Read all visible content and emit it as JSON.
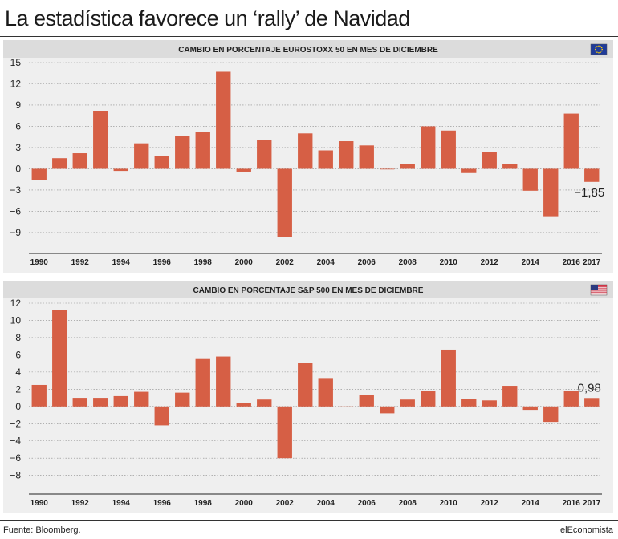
{
  "title": "La estadística favorece un ‘rally’ de Navidad",
  "source": "Fuente: Bloomberg.",
  "brand": "elEconomista",
  "colors": {
    "bar": "#d65f45",
    "panel": "#efefef",
    "header": "#dcdcdc",
    "grid": "#8a8a8a"
  },
  "chart_data": [
    {
      "type": "bar",
      "title": "CAMBIO EN PORCENTAJE EUROSTOXX 50 EN MES DE DICIEMBRE",
      "flag": "eu-flag-icon",
      "categories": [
        "1990",
        "1991",
        "1992",
        "1993",
        "1994",
        "1995",
        "1996",
        "1997",
        "1998",
        "1999",
        "2000",
        "2001",
        "2002",
        "2003",
        "2004",
        "2005",
        "2006",
        "2007",
        "2008",
        "2009",
        "2010",
        "2011",
        "2012",
        "2013",
        "2014",
        "2015",
        "2016",
        "2017"
      ],
      "x_tick_labels": [
        "1990",
        "1992",
        "1994",
        "1996",
        "1998",
        "2000",
        "2002",
        "2004",
        "2006",
        "2008",
        "2010",
        "2012",
        "2014",
        "2016",
        "2017"
      ],
      "values": [
        -1.6,
        1.5,
        2.2,
        8.1,
        -0.3,
        3.6,
        1.8,
        4.6,
        5.2,
        13.7,
        -0.4,
        4.1,
        -9.6,
        5.0,
        2.6,
        3.9,
        3.3,
        0.0,
        0.7,
        6.0,
        5.4,
        -0.6,
        2.4,
        0.7,
        -3.1,
        -6.7,
        7.8,
        -1.85
      ],
      "annotation": {
        "text": "−1,85",
        "index": 27
      },
      "ylim": [
        -11.5,
        15
      ],
      "yticks": [
        15,
        12,
        9,
        6,
        3,
        0,
        -3,
        -6,
        -9
      ]
    },
    {
      "type": "bar",
      "title": "CAMBIO EN PORCENTAJE S&P 500 EN MES DE DICIEMBRE",
      "flag": "us-flag-icon",
      "categories": [
        "1990",
        "1991",
        "1992",
        "1993",
        "1994",
        "1995",
        "1996",
        "1997",
        "1998",
        "1999",
        "2000",
        "2001",
        "2002",
        "2003",
        "2004",
        "2005",
        "2006",
        "2007",
        "2008",
        "2009",
        "2010",
        "2011",
        "2012",
        "2013",
        "2014",
        "2015",
        "2016",
        "2017"
      ],
      "x_tick_labels": [
        "1990",
        "1992",
        "1994",
        "1996",
        "1998",
        "2000",
        "2002",
        "2004",
        "2006",
        "2008",
        "2010",
        "2012",
        "2014",
        "2016",
        "2017"
      ],
      "values": [
        2.5,
        11.2,
        1.0,
        1.0,
        1.2,
        1.7,
        -2.2,
        1.6,
        5.6,
        5.8,
        0.4,
        0.8,
        -6.0,
        5.1,
        3.3,
        0.0,
        1.3,
        -0.8,
        0.8,
        1.8,
        6.6,
        0.9,
        0.7,
        2.4,
        -0.4,
        -1.8,
        1.8,
        0.98
      ],
      "annotation": {
        "text": "0,98",
        "index": 27
      },
      "ylim": [
        -9.8,
        12
      ],
      "yticks": [
        12,
        10,
        8,
        6,
        4,
        2,
        0,
        -2,
        -4,
        -6,
        -8
      ]
    }
  ]
}
